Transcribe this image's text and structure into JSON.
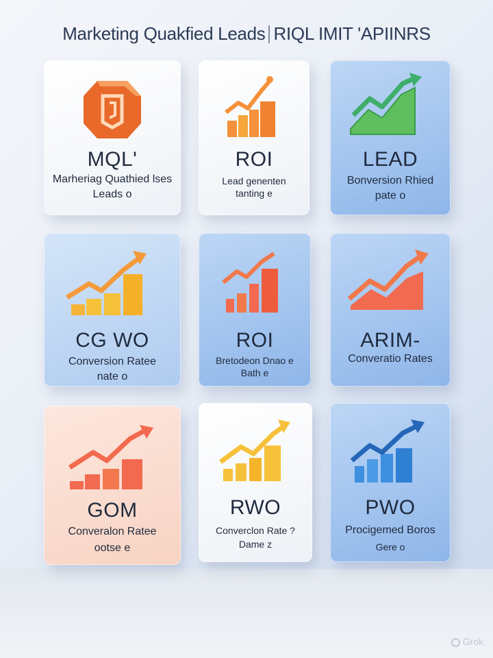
{
  "header": {
    "title_left": "Marketing Quakfied Leads",
    "title_right": "RIQL IMIT 'APIINRS"
  },
  "tiles": [
    {
      "big": "MQL'",
      "line1": "Marheriag Quathied lses",
      "line2": "Leads o",
      "icon": "shield-icon"
    },
    {
      "big": "ROI",
      "line1": "Lead genenten",
      "line2": "tanting e",
      "icon": "bar-chart-icon"
    },
    {
      "big": "LEAD",
      "line1": "Bonversion Rhied",
      "line2": "pate o",
      "icon": "trend-area-icon"
    },
    {
      "big": "CG WO",
      "line1": "Conversion Ratee",
      "line2": "nate o",
      "icon": "bar-chart-icon"
    },
    {
      "big": "ROI",
      "line1": "Bretodeon Dnao e",
      "line2": "Bath e",
      "icon": "bar-chart-icon"
    },
    {
      "big": "ARIM-",
      "line1": "Converatio Rates",
      "line2": "",
      "icon": "trend-area-icon"
    },
    {
      "big": "GOM",
      "line1": "Converalon Ratee",
      "line2": "ootse e",
      "icon": "bar-chart-icon"
    },
    {
      "big": "RWO",
      "line1": "Converclon Rate ?",
      "line2": "Dame z",
      "icon": "bar-chart-icon"
    },
    {
      "big": "PWO",
      "line1": "Procigemed Boros",
      "line2": "Gere o",
      "icon": "trend-area-icon"
    }
  ],
  "watermark": {
    "text": "Grok",
    "icon": "grok-icon"
  },
  "colors": {
    "orange": "#f5913a",
    "orange_dark": "#e0651e",
    "green": "#4fae5a",
    "green_dark": "#2f8a45",
    "yellow": "#f6c13a",
    "coral": "#f26a4f",
    "blue": "#3d8fe0",
    "blue_dark": "#2566b8"
  }
}
